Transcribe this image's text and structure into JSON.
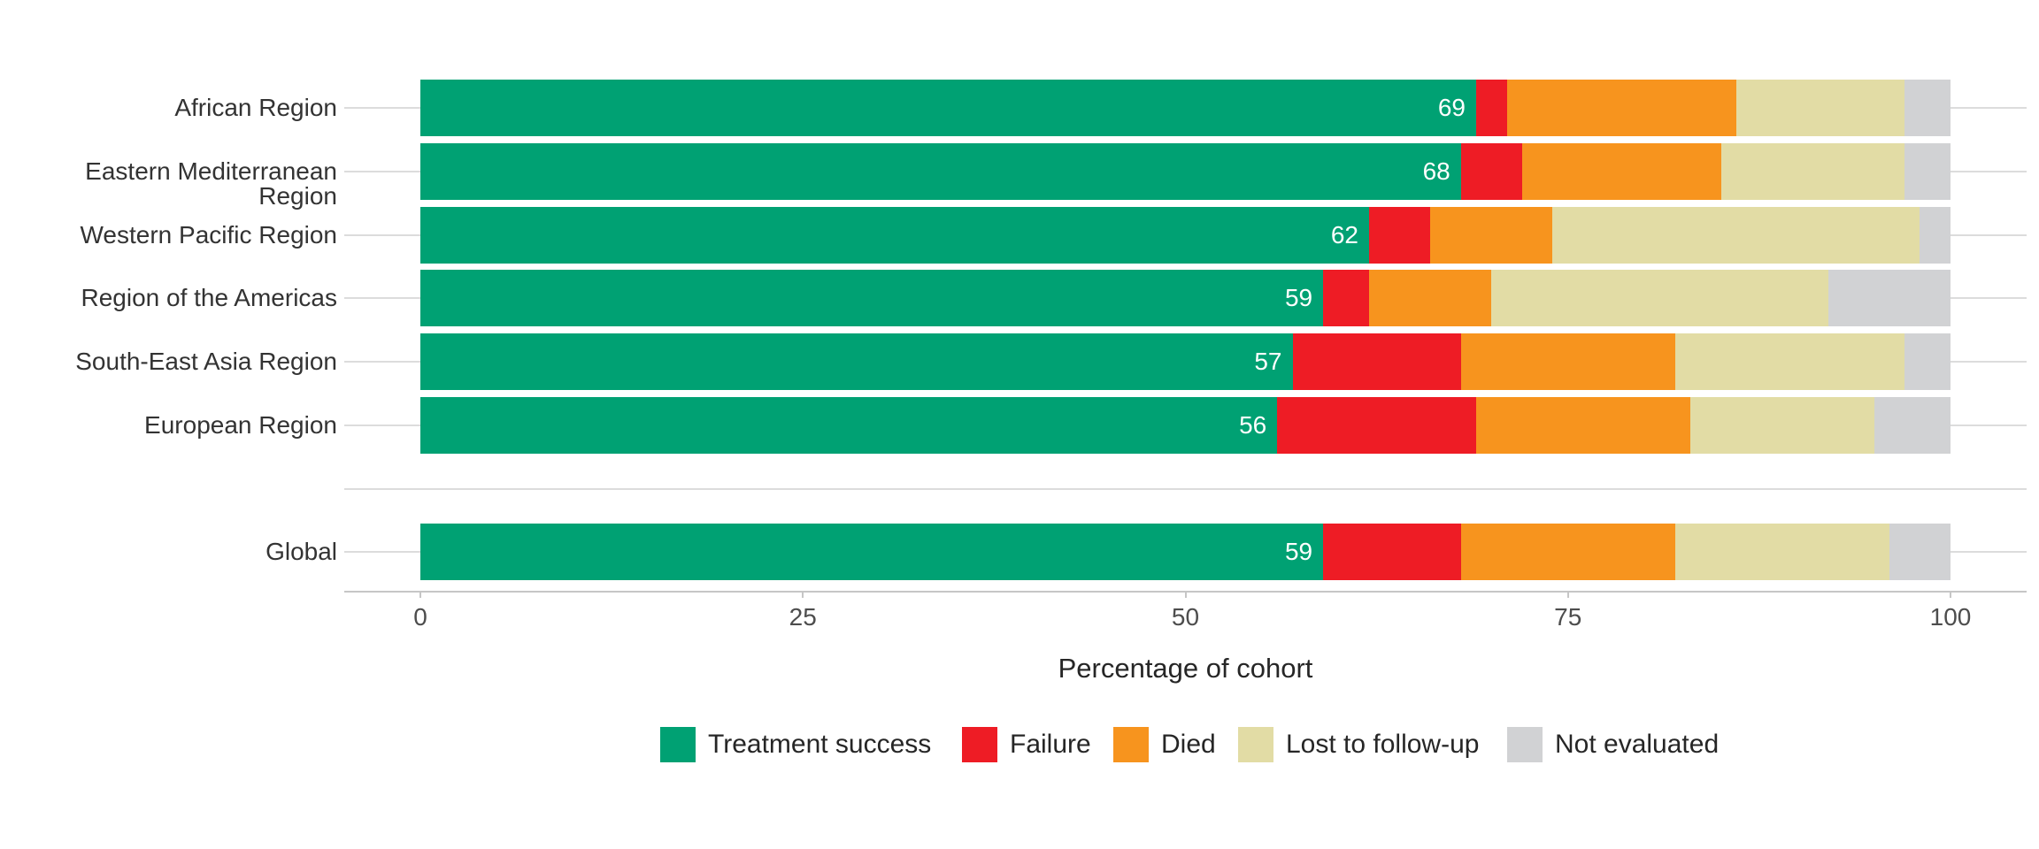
{
  "chart_data": {
    "type": "bar",
    "orientation": "horizontal-stacked",
    "title": "",
    "xlabel": "Percentage of cohort",
    "ylabel": "",
    "xlim": [
      0,
      100
    ],
    "x_ticks": [
      "0",
      "25",
      "50",
      "75",
      "100"
    ],
    "x_tick_values": [
      0,
      25,
      50,
      75,
      100
    ],
    "grid": "category-gridlines-on",
    "legend_position": "bottom",
    "categories": [
      "African Region",
      "Eastern Mediterranean Region",
      "Western Pacific Region",
      "Region of the Americas",
      "South-East Asia Region",
      "European Region",
      "Global"
    ],
    "series": [
      {
        "name": "Treatment success",
        "color": "#00A173",
        "values": [
          69,
          68,
          62,
          59,
          57,
          56,
          59
        ]
      },
      {
        "name": "Failure",
        "color": "#EE1C25",
        "values": [
          2,
          4,
          4,
          3,
          11,
          13,
          9
        ]
      },
      {
        "name": "Died",
        "color": "#F7941E",
        "values": [
          15,
          13,
          8,
          8,
          14,
          14,
          14
        ]
      },
      {
        "name": "Lost to follow-up",
        "color": "#E2DCA5",
        "values": [
          11,
          12,
          24,
          22,
          15,
          12,
          14
        ]
      },
      {
        "name": "Not evaluated",
        "color": "#D1D2D4",
        "values": [
          3,
          3,
          2,
          8,
          3,
          5,
          4
        ]
      }
    ],
    "bar_value_labels": [
      "69",
      "68",
      "62",
      "59",
      "57",
      "56",
      "59"
    ],
    "bar_value_label_series": "Treatment success",
    "annotations": []
  },
  "legend": {
    "items": [
      {
        "label": "Treatment success",
        "color": "#00A173"
      },
      {
        "label": "Failure",
        "color": "#EE1C25"
      },
      {
        "label": "Died",
        "color": "#F7941E"
      },
      {
        "label": "Lost to follow-up",
        "color": "#E2DCA5"
      },
      {
        "label": "Not evaluated",
        "color": "#D1D2D4"
      }
    ]
  },
  "colors": {
    "treatment_success": "#00A173",
    "failure": "#EE1C25",
    "died": "#F7941E",
    "lost_to_follow_up": "#E2DCA5",
    "not_evaluated": "#D1D2D4",
    "gridline": "#DCDCDC",
    "axis_line": "#C6C6C6",
    "axis_text": "#4D4D4D",
    "category_text": "#333333",
    "background": "#FFFFFF"
  },
  "axis": {
    "x_title": "Percentage of cohort"
  }
}
